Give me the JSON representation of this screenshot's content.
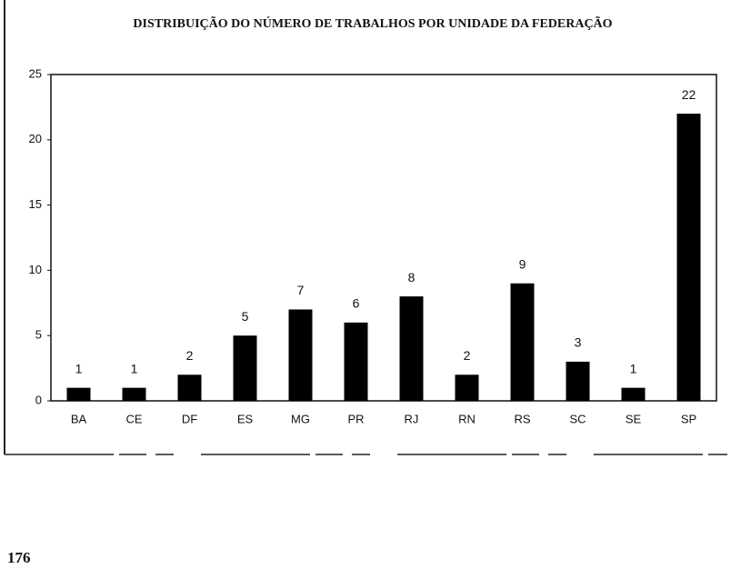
{
  "chart_data": {
    "type": "bar",
    "title": "DISTRIBUIÇÃO DO NÚMERO DE TRABALHOS POR UNIDADE DA FEDERAÇÃO",
    "categories": [
      "BA",
      "CE",
      "DF",
      "ES",
      "MG",
      "PR",
      "RJ",
      "RN",
      "RS",
      "SC",
      "SE",
      "SP"
    ],
    "values": [
      1,
      1,
      2,
      5,
      7,
      6,
      8,
      2,
      9,
      3,
      1,
      22
    ],
    "color": "#000000",
    "ylim": [
      0,
      25
    ],
    "yticks": [
      0,
      5,
      10,
      15,
      20,
      25
    ],
    "grid": false
  },
  "page_number": 176
}
